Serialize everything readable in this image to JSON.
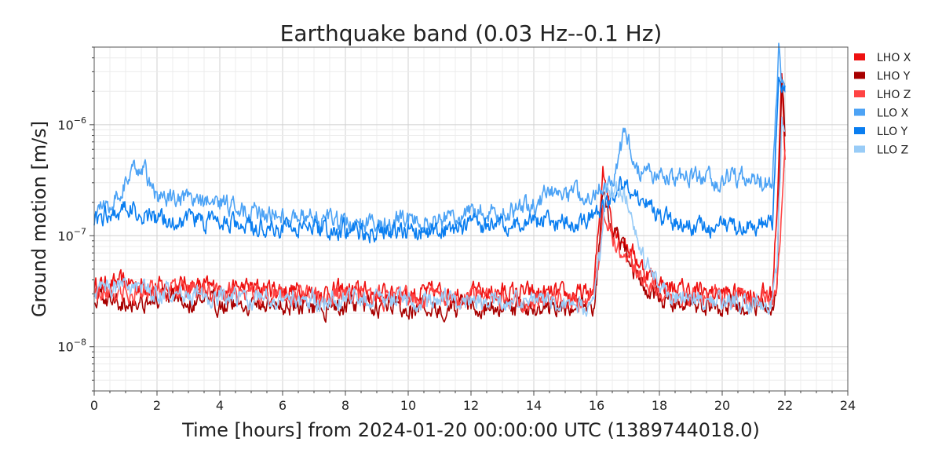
{
  "chart_data": {
    "type": "line",
    "title": "Earthquake band (0.03 Hz--0.1 Hz)",
    "xlabel": "Time [hours] from 2024-01-20 00:00:00 UTC (1389744018.0)",
    "ylabel": "Ground motion [m/s]",
    "x_scale": "linear",
    "y_scale": "log",
    "xlim": [
      0,
      24
    ],
    "ylim": [
      4e-09,
      5e-06
    ],
    "x_ticks": [
      0,
      2,
      4,
      6,
      8,
      10,
      12,
      14,
      16,
      18,
      20,
      22,
      24
    ],
    "x_tick_labels": [
      "0",
      "2",
      "4",
      "6",
      "8",
      "10",
      "12",
      "14",
      "16",
      "18",
      "20",
      "22",
      "24"
    ],
    "y_ticks": [
      1e-08,
      1e-07,
      1e-06
    ],
    "y_tick_labels": [
      {
        "base": "10",
        "exp": "−8"
      },
      {
        "base": "10",
        "exp": "−7"
      },
      {
        "base": "10",
        "exp": "−6"
      }
    ],
    "grid": true,
    "legend_position": "outside-right",
    "series": [
      {
        "name": "LHO X",
        "color": "#ee1111",
        "x": [
          0,
          1,
          2,
          3,
          4,
          5,
          6,
          7,
          8,
          9,
          10,
          11,
          12,
          13,
          14,
          15,
          15.9,
          16.1,
          16.2,
          16.5,
          17,
          17.5,
          18,
          18.5,
          19,
          20,
          21,
          21.6,
          21.75,
          21.9,
          22
        ],
        "y": [
          3.5e-08,
          3.8e-08,
          3.4e-08,
          3.6e-08,
          3.3e-08,
          3.4e-08,
          3.3e-08,
          3.1e-08,
          3.2e-08,
          3e-08,
          3e-08,
          3.1e-08,
          3e-08,
          3.1e-08,
          3e-08,
          2.9e-08,
          3e-08,
          1.5e-07,
          4.5e-07,
          1.3e-07,
          8e-08,
          5e-08,
          3.8e-08,
          3.3e-08,
          3.2e-08,
          3e-08,
          3e-08,
          3e-08,
          2e-07,
          3.2e-06,
          4.5e-07
        ]
      },
      {
        "name": "LHO Y",
        "color": "#a80000",
        "x": [
          0,
          1,
          2,
          3,
          4,
          5,
          6,
          7,
          8,
          9,
          10,
          11,
          12,
          13,
          14,
          15,
          15.9,
          16.1,
          16.2,
          16.5,
          17,
          17.5,
          18,
          18.5,
          19,
          20,
          21,
          21.6,
          21.75,
          21.9,
          22
        ],
        "y": [
          2.8e-08,
          2.6e-08,
          2.6e-08,
          2.5e-08,
          2.5e-08,
          2.4e-08,
          2.4e-08,
          2.3e-08,
          2.3e-08,
          2.3e-08,
          2.3e-08,
          2.3e-08,
          2.2e-08,
          2.2e-08,
          2.3e-08,
          2.3e-08,
          2.2e-08,
          8e-08,
          2.5e-07,
          1.2e-07,
          6e-08,
          3.5e-08,
          2.7e-08,
          2.5e-08,
          2.4e-08,
          2.3e-08,
          2.3e-08,
          2.2e-08,
          4e-08,
          3e-06,
          9e-07
        ]
      },
      {
        "name": "LHO Z",
        "color": "#ff4444",
        "x": [
          0,
          1,
          2,
          3,
          4,
          5,
          6,
          7,
          8,
          9,
          10,
          11,
          12,
          13,
          14,
          15,
          15.9,
          16.1,
          16.2,
          16.5,
          17,
          17.5,
          18,
          18.5,
          19,
          20,
          21,
          21.6,
          21.75,
          21.9,
          22
        ],
        "y": [
          3.2e-08,
          3e-08,
          3.2e-08,
          3.1e-08,
          3e-08,
          3e-08,
          2.9e-08,
          2.8e-08,
          2.9e-08,
          2.8e-08,
          2.7e-08,
          2.8e-08,
          2.7e-08,
          2.7e-08,
          2.8e-08,
          2.6e-08,
          2.7e-08,
          7e-08,
          1.8e-07,
          1e-07,
          6e-08,
          4e-08,
          3.2e-08,
          3e-08,
          2.9e-08,
          2.8e-08,
          2.7e-08,
          2.7e-08,
          4e-08,
          2e-07,
          5e-07
        ]
      },
      {
        "name": "LLO X",
        "color": "#4da3f5",
        "x": [
          0,
          0.5,
          1,
          1.5,
          2,
          3,
          4,
          5,
          6,
          7,
          8,
          9,
          10,
          11,
          12,
          13,
          14,
          14.5,
          15,
          15.5,
          16,
          16.5,
          16.9,
          17.3,
          18,
          19,
          20,
          21,
          21.6,
          21.8,
          21.9,
          22
        ],
        "y": [
          1.6e-07,
          2e-07,
          3e-07,
          4.5e-07,
          2.2e-07,
          2e-07,
          2e-07,
          1.6e-07,
          1.5e-07,
          1.5e-07,
          1.3e-07,
          1.3e-07,
          1.4e-07,
          1.4e-07,
          1.6e-07,
          1.6e-07,
          1.9e-07,
          2.5e-07,
          2.4e-07,
          2.3e-07,
          2.6e-07,
          3.2e-07,
          8.5e-07,
          3.8e-07,
          3.5e-07,
          3.4e-07,
          3.2e-07,
          3.3e-07,
          2.8e-07,
          4.5e-06,
          2.5e-06,
          2e-06
        ]
      },
      {
        "name": "LLO Y",
        "color": "#0a7ef0",
        "x": [
          0,
          0.5,
          1,
          1.5,
          2,
          3,
          4,
          5,
          6,
          7,
          8,
          9,
          10,
          11,
          12,
          13,
          14,
          14.5,
          15,
          15.5,
          16,
          16.5,
          16.9,
          17.3,
          18,
          19,
          20,
          21,
          21.6,
          21.8,
          21.9,
          22
        ],
        "y": [
          1.4e-07,
          1.6e-07,
          1.8e-07,
          1.6e-07,
          1.4e-07,
          1.4e-07,
          1.3e-07,
          1.2e-07,
          1.2e-07,
          1.2e-07,
          1.1e-07,
          1.1e-07,
          1.1e-07,
          1.1e-07,
          1.2e-07,
          1.2e-07,
          1.3e-07,
          1.4e-07,
          1.4e-07,
          1.3e-07,
          1.5e-07,
          2.4e-07,
          3e-07,
          2.3e-07,
          1.5e-07,
          1.2e-07,
          1.2e-07,
          1.2e-07,
          1.3e-07,
          2.8e-06,
          1.8e-06,
          2e-06
        ]
      },
      {
        "name": "LLO Z",
        "color": "#99ccf7",
        "x": [
          0,
          1,
          2,
          3,
          4,
          5,
          6,
          7,
          8,
          9,
          10,
          11,
          12,
          13,
          14,
          15,
          15.9,
          16.1,
          16.3,
          16.6,
          16.9,
          17.1,
          17.5,
          18,
          18.5,
          19,
          20,
          21,
          21.6,
          21.75,
          21.9,
          22
        ],
        "y": [
          3.3e-08,
          3.6e-08,
          3e-08,
          2.9e-08,
          2.8e-08,
          2.7e-08,
          2.7e-08,
          2.6e-08,
          2.7e-08,
          2.6e-08,
          2.6e-08,
          2.6e-08,
          2.5e-08,
          2.5e-08,
          2.6e-08,
          2.5e-08,
          2.4e-08,
          6e-08,
          2.6e-07,
          2.6e-07,
          2.4e-07,
          1.4e-07,
          7e-08,
          3.8e-08,
          2.8e-08,
          2.6e-08,
          2.5e-08,
          2.5e-08,
          2.5e-08,
          5e-08,
          1e-06,
          1e-06
        ]
      }
    ]
  }
}
